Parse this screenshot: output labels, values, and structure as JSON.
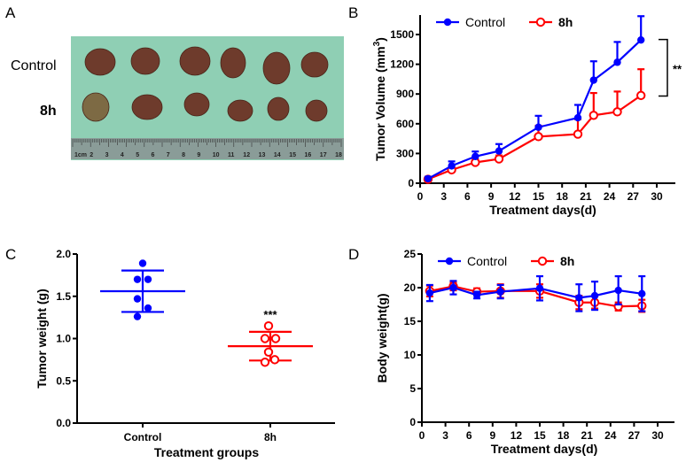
{
  "panels": {
    "a": "A",
    "b": "B",
    "c": "C",
    "d": "D"
  },
  "photo": {
    "row_labels": [
      "Control",
      "8h"
    ],
    "ruler_labels": [
      "1cm",
      "2",
      "3",
      "4",
      "5",
      "6",
      "7",
      "8",
      "9",
      "10",
      "11",
      "12",
      "13",
      "14",
      "15",
      "16",
      "17",
      "18"
    ],
    "background_color": "#8fcfb4",
    "tumor_color": "#6e3b2c"
  },
  "colors": {
    "control": "#0000ff",
    "treated": "#ff0000"
  },
  "chart_data": [
    {
      "id": "B",
      "type": "line",
      "xlabel": "Treatment days(d)",
      "ylabel": "Tumor Volume (mm",
      "ylabel_sup": "3",
      "ylabel_end": ")",
      "xlim": [
        0,
        30
      ],
      "ylim": [
        0,
        1500
      ],
      "xticks": [
        0,
        3,
        6,
        9,
        12,
        15,
        18,
        21,
        24,
        27,
        30
      ],
      "yticks": [
        0,
        300,
        600,
        900,
        1200,
        1500
      ],
      "legend": "top-left",
      "annotation": "**",
      "x": [
        1,
        4,
        7,
        10,
        15,
        20,
        22,
        25,
        28
      ],
      "series": [
        {
          "name": "Control",
          "marker": "filled-circle",
          "values": [
            45,
            175,
            270,
            325,
            565,
            660,
            1040,
            1220,
            1445
          ],
          "error": [
            20,
            45,
            50,
            70,
            115,
            130,
            190,
            205,
            240
          ]
        },
        {
          "name": "8h",
          "marker": "open-circle",
          "values": [
            40,
            135,
            210,
            245,
            470,
            495,
            685,
            720,
            885
          ],
          "error": [
            15,
            25,
            30,
            35,
            110,
            150,
            225,
            205,
            265
          ]
        }
      ]
    },
    {
      "id": "C",
      "type": "scatter",
      "xlabel": "Treatment groups",
      "ylabel": "Tumor weight (g)",
      "ylim": [
        0,
        2.0
      ],
      "yticks": [
        "0.0",
        "0.5",
        "1.0",
        "1.5",
        "2.0"
      ],
      "categories": [
        "Control",
        "8h"
      ],
      "annotation": "***",
      "groups": [
        {
          "name": "Control",
          "marker": "filled-circle",
          "points": [
            1.89,
            1.7,
            1.7,
            1.47,
            1.36,
            1.26
          ],
          "mean": 1.56,
          "sd": 0.245
        },
        {
          "name": "8h",
          "marker": "open-circle",
          "points": [
            1.15,
            1.0,
            1.0,
            0.84,
            0.75,
            0.72
          ],
          "mean": 0.91,
          "sd": 0.17
        }
      ]
    },
    {
      "id": "D",
      "type": "line",
      "xlabel": "Treatment days(d)",
      "ylabel": "Body weight(g)",
      "xlim": [
        0,
        30
      ],
      "ylim": [
        0,
        25
      ],
      "xticks": [
        0,
        3,
        6,
        9,
        12,
        15,
        18,
        21,
        24,
        27,
        30
      ],
      "yticks": [
        0,
        5,
        10,
        15,
        20,
        25
      ],
      "legend": "top-left",
      "x": [
        1,
        4,
        7,
        10,
        15,
        20,
        22,
        25,
        28
      ],
      "series": [
        {
          "name": "Control",
          "marker": "filled-circle",
          "values": [
            19.2,
            20.0,
            18.9,
            19.4,
            19.9,
            18.5,
            18.8,
            19.6,
            19.1
          ],
          "error": [
            1.2,
            1.0,
            0.5,
            1.0,
            1.8,
            2.0,
            2.1,
            2.1,
            2.6
          ]
        },
        {
          "name": "8h",
          "marker": "open-circle",
          "values": [
            19.5,
            20.2,
            19.4,
            19.5,
            19.5,
            17.8,
            17.8,
            17.2,
            17.3
          ],
          "error": [
            0.8,
            0.6,
            0.5,
            1.0,
            1.0,
            1.0,
            0.9,
            0.6,
            0.9
          ]
        }
      ]
    }
  ]
}
